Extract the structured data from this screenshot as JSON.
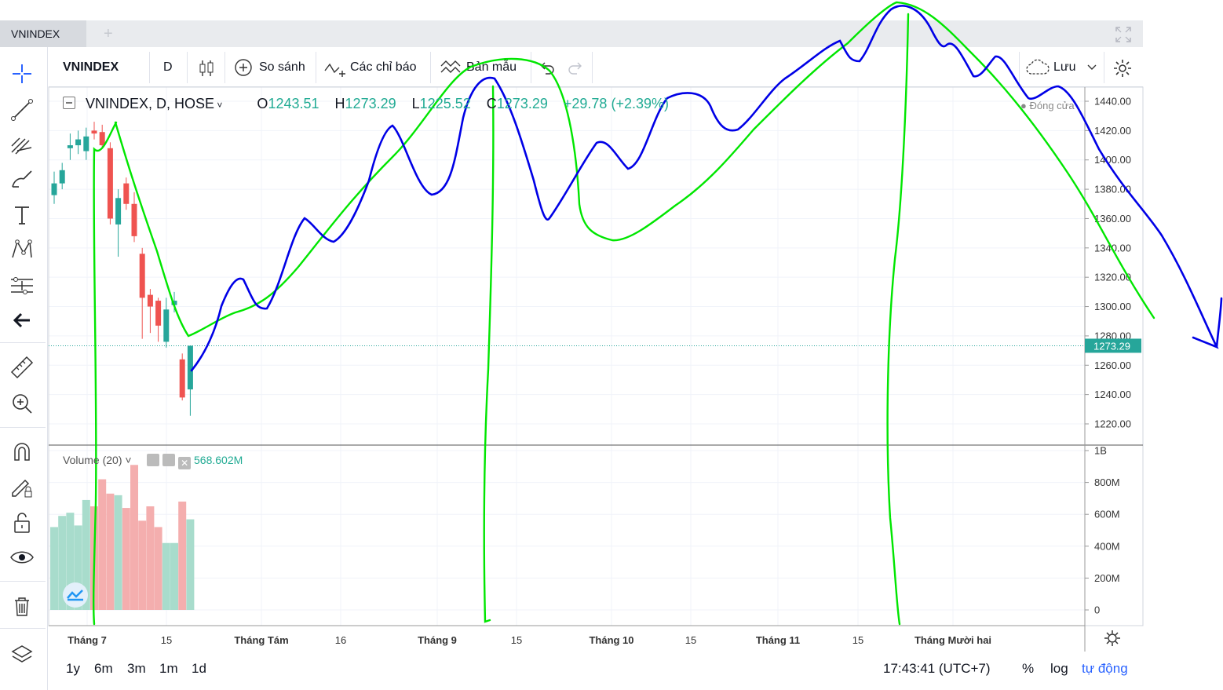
{
  "tab": {
    "title": "VNINDEX",
    "add": "+"
  },
  "toolbar": {
    "symbol": "VNINDEX",
    "interval": "D",
    "compare": "So sánh",
    "indicators": "Các chỉ báo",
    "templates": "Bản mẫu",
    "save": "Lưu"
  },
  "legend": {
    "title": "VNINDEX, D, HOSE",
    "o_label": "O",
    "o_value": "1243.51",
    "h_label": "H",
    "h_value": "1273.29",
    "l_label": "L",
    "l_value": "1225.52",
    "c_label": "C",
    "c_value": "1273.29",
    "change": "+29.78 (+2.39%)",
    "close_label": "Đóng cửa"
  },
  "volume": {
    "label": "Volume (20)",
    "value": "568.602M"
  },
  "last_price": "1273.29",
  "bottom": {
    "ranges": [
      "1y",
      "6m",
      "3m",
      "1m",
      "1d"
    ],
    "clock": "17:43:41 (UTC+7)",
    "percent": "%",
    "log": "log",
    "auto": "tự động"
  },
  "colors": {
    "up": "#26a69a",
    "down": "#ef5350",
    "vol_up": "#a8dccc",
    "vol_down": "#f4aeae",
    "annotation_green": "#00e600",
    "annotation_blue": "#0000e6",
    "accent": "#2962ff"
  },
  "chart_data": {
    "type": "candlestick",
    "price_axis": [
      "1440.00",
      "1420.00",
      "1400.00",
      "1380.00",
      "1360.00",
      "1340.00",
      "1320.00",
      "1300.00",
      "1280.00",
      "1260.00",
      "1240.00",
      "1220.00"
    ],
    "volume_axis": [
      "1B",
      "800M",
      "600M",
      "400M",
      "200M",
      "0"
    ],
    "time_axis": [
      "Tháng 7",
      "15",
      "Tháng Tám",
      "16",
      "Tháng 9",
      "15",
      "Tháng 10",
      "15",
      "Tháng 11",
      "15",
      "Tháng Mười hai"
    ],
    "candles": [
      {
        "o": 1376,
        "h": 1392,
        "l": 1370,
        "c": 1384,
        "v": 520
      },
      {
        "o": 1384,
        "h": 1398,
        "l": 1380,
        "c": 1393,
        "v": 590
      },
      {
        "o": 1408,
        "h": 1418,
        "l": 1400,
        "c": 1410,
        "v": 610
      },
      {
        "o": 1410,
        "h": 1420,
        "l": 1404,
        "c": 1414,
        "v": 530
      },
      {
        "o": 1406,
        "h": 1422,
        "l": 1400,
        "c": 1416,
        "v": 690
      },
      {
        "o": 1420,
        "h": 1426,
        "l": 1414,
        "c": 1418,
        "v": 650
      },
      {
        "o": 1419,
        "h": 1424,
        "l": 1408,
        "c": 1410,
        "v": 820
      },
      {
        "o": 1408,
        "h": 1412,
        "l": 1356,
        "c": 1360,
        "v": 730
      },
      {
        "o": 1356,
        "h": 1380,
        "l": 1334,
        "c": 1374,
        "v": 720
      },
      {
        "o": 1384,
        "h": 1388,
        "l": 1366,
        "c": 1370,
        "v": 640
      },
      {
        "o": 1370,
        "h": 1378,
        "l": 1344,
        "c": 1348,
        "v": 910
      },
      {
        "o": 1336,
        "h": 1340,
        "l": 1278,
        "c": 1306,
        "v": 560
      },
      {
        "o": 1308,
        "h": 1312,
        "l": 1282,
        "c": 1300,
        "v": 650
      },
      {
        "o": 1304,
        "h": 1306,
        "l": 1276,
        "c": 1287,
        "v": 520
      },
      {
        "o": 1276,
        "h": 1306,
        "l": 1272,
        "c": 1298,
        "v": 420
      },
      {
        "o": 1301,
        "h": 1310,
        "l": 1296,
        "c": 1304,
        "v": 420
      },
      {
        "o": 1264,
        "h": 1268,
        "l": 1236,
        "c": 1238,
        "v": 680
      },
      {
        "o": 1243.51,
        "h": 1273.29,
        "l": 1225.52,
        "c": 1273.29,
        "v": 568.602
      }
    ]
  }
}
